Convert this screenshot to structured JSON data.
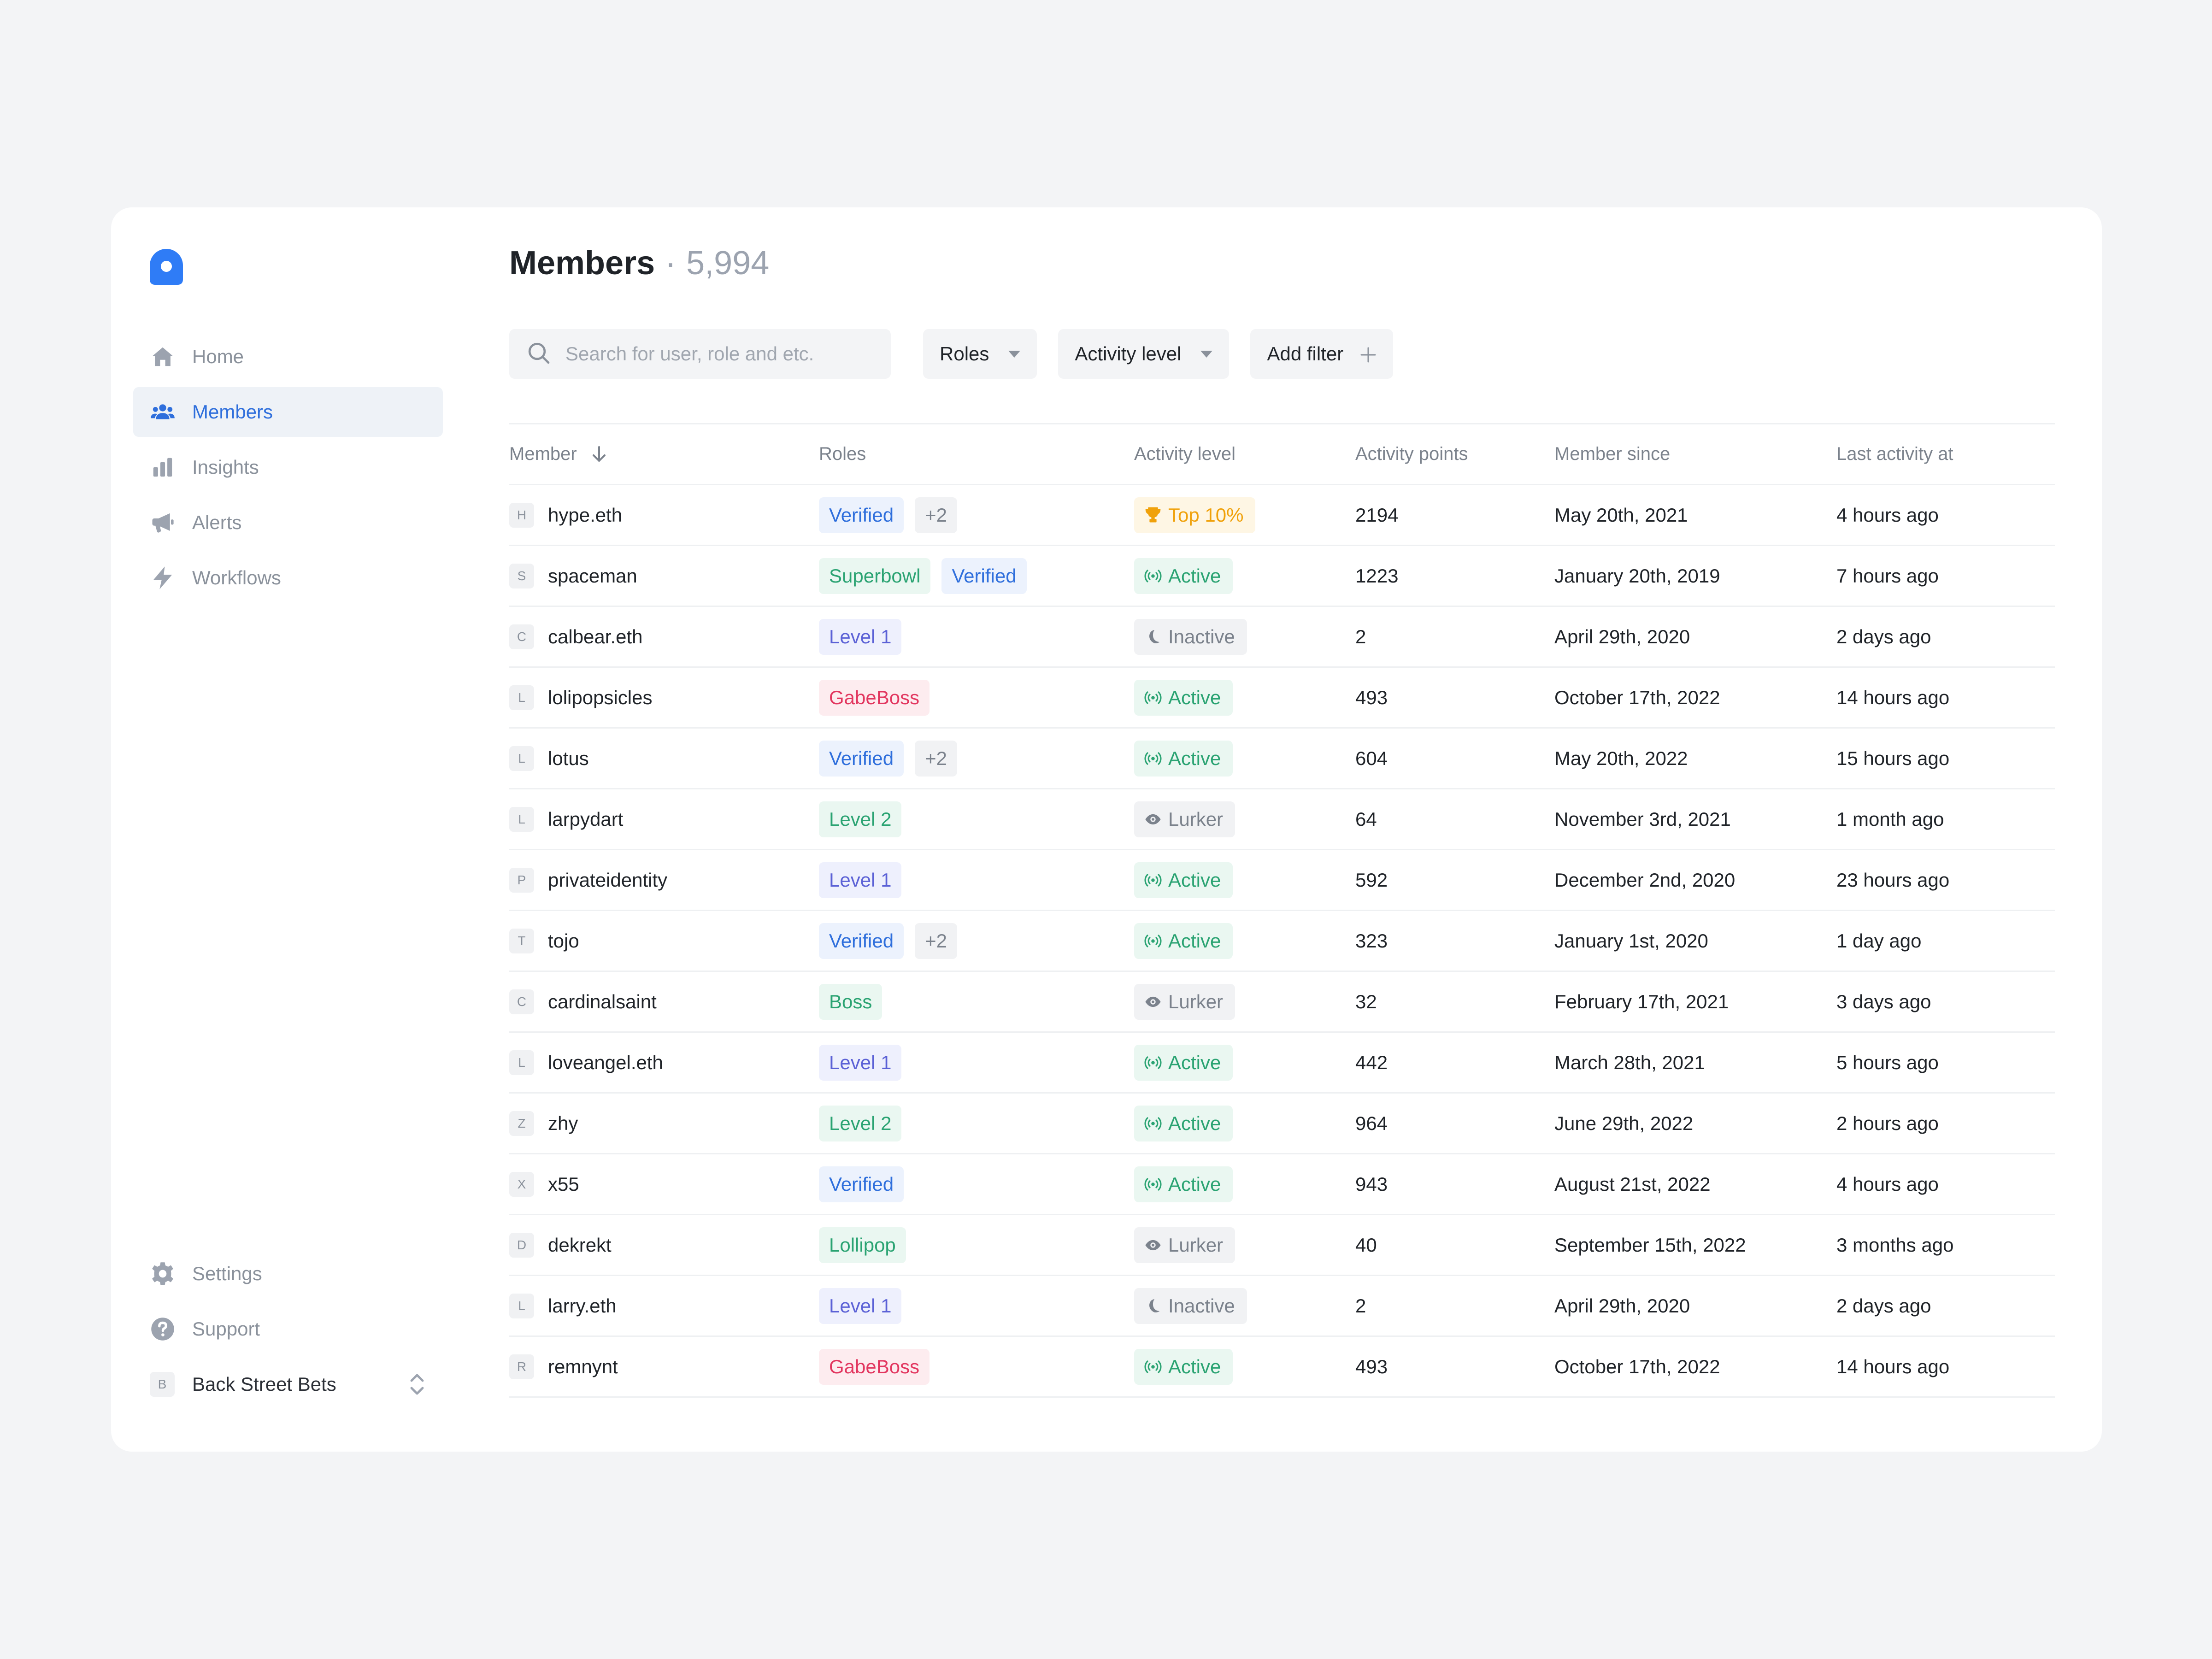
{
  "sidebar": {
    "logo": "app-logo",
    "items": [
      {
        "label": "Home",
        "icon": "home-icon",
        "active": false
      },
      {
        "label": "Members",
        "icon": "members-icon",
        "active": true
      },
      {
        "label": "Insights",
        "icon": "bar-chart-icon",
        "active": false
      },
      {
        "label": "Alerts",
        "icon": "megaphone-icon",
        "active": false
      },
      {
        "label": "Workflows",
        "icon": "bolt-icon",
        "active": false
      }
    ],
    "bottom": [
      {
        "label": "Settings",
        "icon": "gear-icon"
      },
      {
        "label": "Support",
        "icon": "help-icon"
      }
    ],
    "workspace": {
      "initial": "B",
      "name": "Back Street Bets"
    }
  },
  "header": {
    "title": "Members",
    "separator": "·",
    "count": "5,994"
  },
  "toolbar": {
    "search_placeholder": "Search for user, role and etc.",
    "roles_label": "Roles",
    "activity_label": "Activity level",
    "add_filter_label": "Add filter"
  },
  "table": {
    "columns": [
      "Member",
      "Roles",
      "Activity level",
      "Activity points",
      "Member since",
      "Last activity at"
    ],
    "rows": [
      {
        "initial": "H",
        "name": "hype.eth",
        "roles": [
          "Verified",
          "+2"
        ],
        "activity": "Top 10%",
        "points": "2194",
        "since": "May 20th, 2021",
        "last": "4 hours ago"
      },
      {
        "initial": "S",
        "name": "spaceman",
        "roles": [
          "Superbowl",
          "Verified"
        ],
        "activity": "Active",
        "points": "1223",
        "since": "January 20th, 2019",
        "last": "7 hours ago"
      },
      {
        "initial": "C",
        "name": "calbear.eth",
        "roles": [
          "Level 1"
        ],
        "activity": "Inactive",
        "points": "2",
        "since": "April 29th, 2020",
        "last": "2 days ago"
      },
      {
        "initial": "L",
        "name": "lolipopsicles",
        "roles": [
          "GabeBoss"
        ],
        "activity": "Active",
        "points": "493",
        "since": "October 17th, 2022",
        "last": "14 hours ago"
      },
      {
        "initial": "L",
        "name": "lotus",
        "roles": [
          "Verified",
          "+2"
        ],
        "activity": "Active",
        "points": "604",
        "since": "May 20th, 2022",
        "last": "15 hours ago"
      },
      {
        "initial": "L",
        "name": "larpydart",
        "roles": [
          "Level 2"
        ],
        "activity": "Lurker",
        "points": "64",
        "since": "November 3rd, 2021",
        "last": "1 month ago"
      },
      {
        "initial": "P",
        "name": "privateidentity",
        "roles": [
          "Level 1"
        ],
        "activity": "Active",
        "points": "592",
        "since": "December 2nd, 2020",
        "last": "23 hours ago"
      },
      {
        "initial": "T",
        "name": "tojo",
        "roles": [
          "Verified",
          "+2"
        ],
        "activity": "Active",
        "points": "323",
        "since": "January 1st, 2020",
        "last": "1 day ago"
      },
      {
        "initial": "C",
        "name": "cardinalsaint",
        "roles": [
          "Boss"
        ],
        "activity": "Lurker",
        "points": "32",
        "since": "February 17th, 2021",
        "last": "3 days ago"
      },
      {
        "initial": "L",
        "name": "loveangel.eth",
        "roles": [
          "Level 1"
        ],
        "activity": "Active",
        "points": "442",
        "since": "March 28th, 2021",
        "last": "5 hours ago"
      },
      {
        "initial": "Z",
        "name": "zhy",
        "roles": [
          "Level 2"
        ],
        "activity": "Active",
        "points": "964",
        "since": "June 29th, 2022",
        "last": "2 hours ago"
      },
      {
        "initial": "X",
        "name": "x55",
        "roles": [
          "Verified"
        ],
        "activity": "Active",
        "points": "943",
        "since": "August 21st, 2022",
        "last": "4 hours ago"
      },
      {
        "initial": "D",
        "name": "dekrekt",
        "roles": [
          "Lollipop"
        ],
        "activity": "Lurker",
        "points": "40",
        "since": "September 15th, 2022",
        "last": "3 months ago"
      },
      {
        "initial": "L",
        "name": "larry.eth",
        "roles": [
          "Level 1"
        ],
        "activity": "Inactive",
        "points": "2",
        "since": "April 29th, 2020",
        "last": "2 days ago"
      },
      {
        "initial": "R",
        "name": "remnynt",
        "roles": [
          "GabeBoss"
        ],
        "activity": "Active",
        "points": "493",
        "since": "October 17th, 2022",
        "last": "14 hours ago"
      }
    ]
  },
  "colors": {
    "accent": "#2f6fdc",
    "role_colors": {
      "Verified": {
        "bg": "#ecf2fd",
        "fg": "#2f6fdc"
      },
      "+2": {
        "bg": "#f1f2f4",
        "fg": "#7b828c"
      },
      "Superbowl": {
        "bg": "#eaf7f1",
        "fg": "#2aa372"
      },
      "Level 1": {
        "bg": "#eef0fd",
        "fg": "#5b61d6"
      },
      "Level 2": {
        "bg": "#eaf7f1",
        "fg": "#2aa372"
      },
      "GabeBoss": {
        "bg": "#fdecef",
        "fg": "#e2365f"
      },
      "Boss": {
        "bg": "#eaf7f1",
        "fg": "#2aa372"
      },
      "Lollipop": {
        "bg": "#eaf7f1",
        "fg": "#2aa372"
      }
    },
    "activity_colors": {
      "Top 10%": {
        "bg": "#fef6e4",
        "fg": "#f0a10a",
        "icon": "trophy-icon"
      },
      "Active": {
        "bg": "#eaf7f1",
        "fg": "#2aa372",
        "icon": "signal-icon"
      },
      "Inactive": {
        "bg": "#f1f2f4",
        "fg": "#7b828c",
        "icon": "moon-icon"
      },
      "Lurker": {
        "bg": "#f1f2f4",
        "fg": "#7b828c",
        "icon": "eye-icon"
      }
    }
  }
}
